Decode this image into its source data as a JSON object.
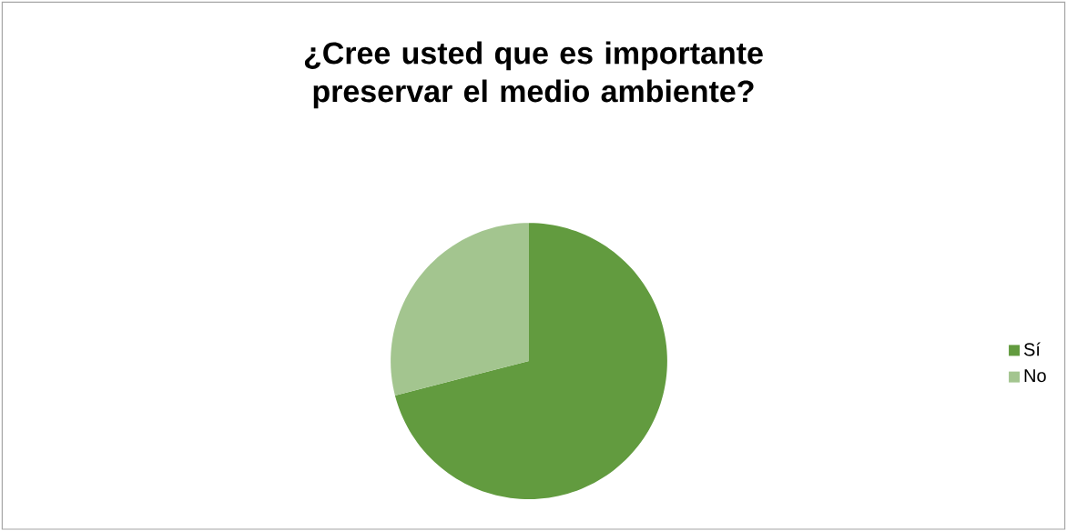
{
  "chart_data": {
    "type": "pie",
    "title": "¿Cree usted que es importante  preservar el medio ambiente?",
    "categories": [
      "Sí",
      "No"
    ],
    "values": [
      71,
      29
    ],
    "colors": [
      "#629b3f",
      "#a3c58f"
    ],
    "legend": "right"
  }
}
